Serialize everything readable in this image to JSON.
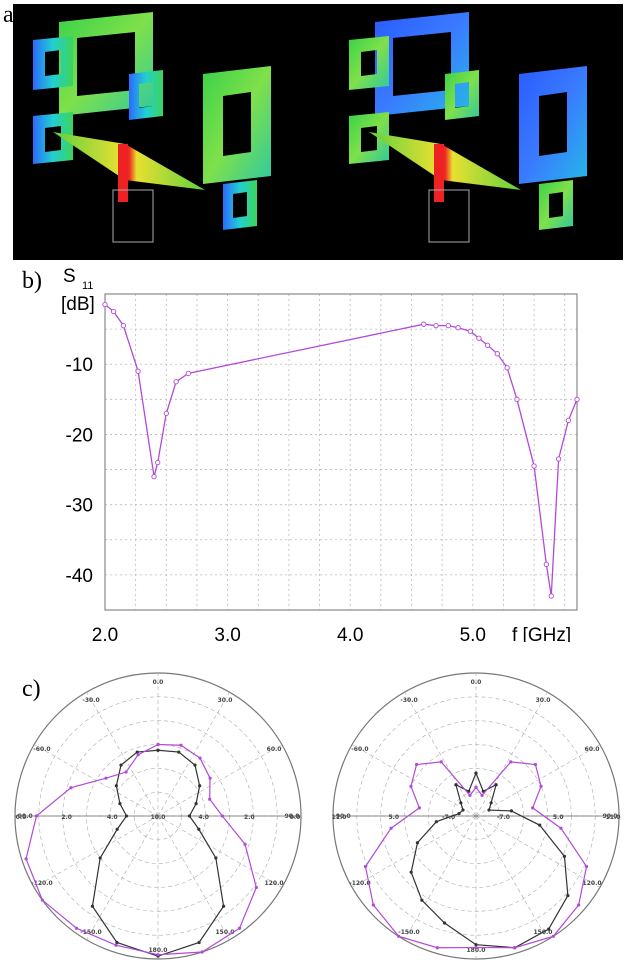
{
  "labels": {
    "a": "a)",
    "b": "b)",
    "c": "c)"
  },
  "colors": {
    "line": "#b24ad8",
    "black_line": "#333333",
    "grid": "#bbbbbb"
  },
  "chart_data": [
    {
      "type": "line",
      "ylabel_top": "S",
      "ylabel_sub": "11",
      "ylabel_unit": "[dB]",
      "xlabel": "f [GHz]",
      "xlim": [
        2.0,
        5.85
      ],
      "ylim": [
        -45,
        0
      ],
      "xticks": [
        "2.0",
        "3.0",
        "4.0",
        "5.0"
      ],
      "yticks": [
        "-10",
        "-20",
        "-30",
        "-40"
      ],
      "grid": true,
      "series": [
        {
          "x": [
            2.0,
            2.07,
            2.15,
            2.27,
            2.4,
            2.43,
            2.5,
            2.58,
            2.68,
            4.6,
            4.7,
            4.8,
            4.88,
            4.98,
            5.05,
            5.12,
            5.2,
            5.28,
            5.36,
            5.5,
            5.6,
            5.64,
            5.7,
            5.78,
            5.85
          ],
          "y": [
            -1.5,
            -2.5,
            -4.5,
            -11,
            -26,
            -24,
            -17,
            -12.5,
            -11.3,
            -4.3,
            -4.5,
            -4.5,
            -4.8,
            -5.3,
            -6.3,
            -7.3,
            -8.5,
            -10.5,
            -15,
            -24.5,
            -38.5,
            -43,
            -23.5,
            -18,
            -15
          ]
        }
      ]
    },
    {
      "type": "polar",
      "angle_labels": [
        "0.0",
        "30.0",
        "60.0",
        "90.0",
        "120.0",
        "150.0",
        "180.0",
        "-150.0",
        "-120.0",
        "-90.0",
        "-60.0",
        "-30.0"
      ],
      "radial_labels": [
        "0.0",
        "2.0",
        "4.0",
        "10.0",
        "4.0",
        "2.0",
        "0.0"
      ],
      "series": [
        {
          "r": [
            0.46,
            0.47,
            0.44,
            0.36,
            0.28,
            0.22,
            0.3,
            0.5,
            0.78,
            0.93,
            0.98,
            0.93,
            0.78,
            0.5,
            0.3,
            0.22,
            0.28,
            0.36,
            0.44,
            0.47,
            0.46
          ]
        },
        {
          "r": [
            0.5,
            0.52,
            0.5,
            0.45,
            0.38,
            0.45,
            0.64,
            0.85,
            0.97,
            1.0,
            0.97,
            0.95,
            0.97,
            1.0,
            0.97,
            0.85,
            0.64,
            0.45,
            0.38,
            0.45,
            0.5
          ]
        }
      ]
    },
    {
      "type": "polar",
      "angle_labels": [
        "0.0",
        "30.0",
        "60.0",
        "90.0",
        "120.0",
        "150.0",
        "180.0",
        "-150.0",
        "-120.0",
        "-90.0",
        "-60.0",
        "-30.0"
      ],
      "radial_labels": [
        "11.0",
        "5.0",
        "-7.0",
        "-7.0",
        "5.0",
        "11.0"
      ],
      "series": [
        {
          "r": [
            0.3,
            0.18,
            0.26,
            0.14,
            0.1,
            0.25,
            0.45,
            0.68,
            0.85,
            0.94,
            0.96,
            0.9,
            0.78,
            0.7,
            0.6,
            0.45,
            0.28,
            0.12,
            0.1,
            0.14,
            0.26,
            0.18,
            0.3
          ]
        },
        {
          "r": [
            0.2,
            0.15,
            0.45,
            0.55,
            0.5,
            0.4,
            0.6,
            0.85,
            0.95,
            1.0,
            0.96,
            0.92,
            0.96,
            1.0,
            0.95,
            0.85,
            0.6,
            0.4,
            0.5,
            0.55,
            0.45,
            0.15,
            0.2
          ]
        }
      ]
    }
  ]
}
